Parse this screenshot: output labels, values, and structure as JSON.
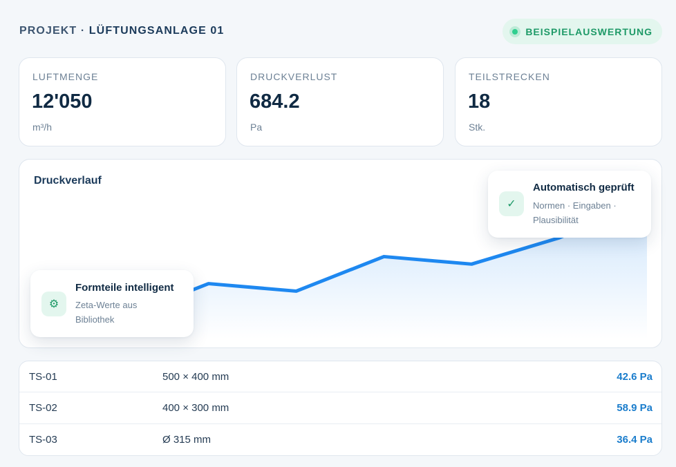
{
  "header": {
    "project_label": "PROJEKT ·",
    "project_name": "LÜFTUNGSANLAGE 01",
    "badge_label": "BEISPIELAUSWERTUNG"
  },
  "stats": [
    {
      "label": "LUFTMENGE",
      "value": "12'050",
      "unit": "m³/h"
    },
    {
      "label": "DRUCKVERLUST",
      "value": "684.2",
      "unit": "Pa"
    },
    {
      "label": "TEILSTRECKEN",
      "value": "18",
      "unit": "Stk."
    }
  ],
  "chart": {
    "title": "Druckverlauf",
    "line_color": "#1e88f0"
  },
  "chart_data": {
    "type": "area",
    "title": "Druckverlauf",
    "xlabel": "",
    "ylabel": "",
    "grid": false,
    "legend": "none",
    "x": [
      1,
      2,
      3,
      4,
      5,
      6,
      7,
      8
    ],
    "y": [
      12,
      28,
      74,
      64,
      110,
      100,
      135,
      185
    ],
    "ylim": [
      0,
      230
    ]
  },
  "callouts": {
    "left": {
      "icon": "gear-icon",
      "glyph": "⚙",
      "title": "Formteile intelligent",
      "desc_line1": "Zeta-Werte aus",
      "desc_line2": "Bibliothek"
    },
    "right": {
      "icon": "check-icon",
      "glyph": "✓",
      "title": "Automatisch geprüft",
      "desc_line1": "Normen · Eingaben ·",
      "desc_line2": "Plausibilität"
    }
  },
  "table": {
    "rows": [
      {
        "id": "TS-01",
        "dimension": "500 × 400 mm",
        "pressure": "42.6 Pa"
      },
      {
        "id": "TS-02",
        "dimension": "400 × 300 mm",
        "pressure": "58.9 Pa"
      },
      {
        "id": "TS-03",
        "dimension": "Ø 315 mm",
        "pressure": "36.4 Pa"
      }
    ]
  },
  "colors": {
    "accent": "#1e88f0",
    "success": "#2fcf8f",
    "value_blue": "#1b7dcc"
  }
}
